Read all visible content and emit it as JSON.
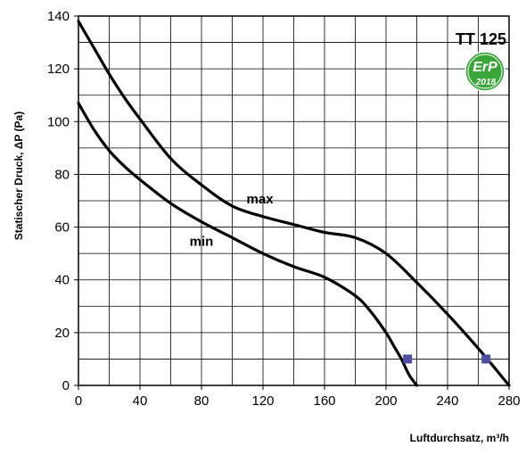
{
  "chart_data": {
    "type": "line",
    "title": "TT 125",
    "xlabel": "Luftdurchsatz, m³/h",
    "ylabel": "Statischer Druck, ΔP (Pa)",
    "xlim": [
      0,
      280
    ],
    "ylim": [
      0,
      140
    ],
    "x_ticks": [
      0,
      40,
      80,
      120,
      160,
      200,
      240,
      280
    ],
    "y_ticks": [
      0,
      20,
      40,
      60,
      80,
      100,
      120,
      140
    ],
    "x_minor_step": 20,
    "y_minor_step": 10,
    "grid": true,
    "series": [
      {
        "name": "max",
        "color": "#000000",
        "x": [
          0,
          10,
          20,
          30,
          40,
          60,
          80,
          100,
          120,
          140,
          160,
          180,
          200,
          220,
          240,
          260,
          280
        ],
        "values": [
          138,
          128,
          118,
          109,
          101,
          86,
          76,
          68,
          64,
          61,
          58,
          56,
          50,
          39,
          27,
          14,
          0
        ]
      },
      {
        "name": "min",
        "color": "#000000",
        "x": [
          0,
          10,
          20,
          30,
          40,
          60,
          80,
          100,
          120,
          140,
          160,
          180,
          190,
          200,
          205,
          210,
          215,
          220
        ],
        "values": [
          107,
          97,
          89,
          83,
          78,
          69,
          62,
          56,
          50,
          45,
          41,
          34,
          28,
          20,
          15,
          10,
          4,
          0
        ]
      }
    ],
    "markers": [
      {
        "x": 214,
        "y": 10,
        "color": "#4b4f9e"
      },
      {
        "x": 265,
        "y": 10,
        "color": "#4b4f9e"
      }
    ],
    "annotations": [
      {
        "text": "max",
        "x": 118,
        "y": 69
      },
      {
        "text": "min",
        "x": 80,
        "y": 53
      }
    ],
    "badge": {
      "line1": "ErP",
      "line2": "2018",
      "color": "#3aa539"
    }
  }
}
